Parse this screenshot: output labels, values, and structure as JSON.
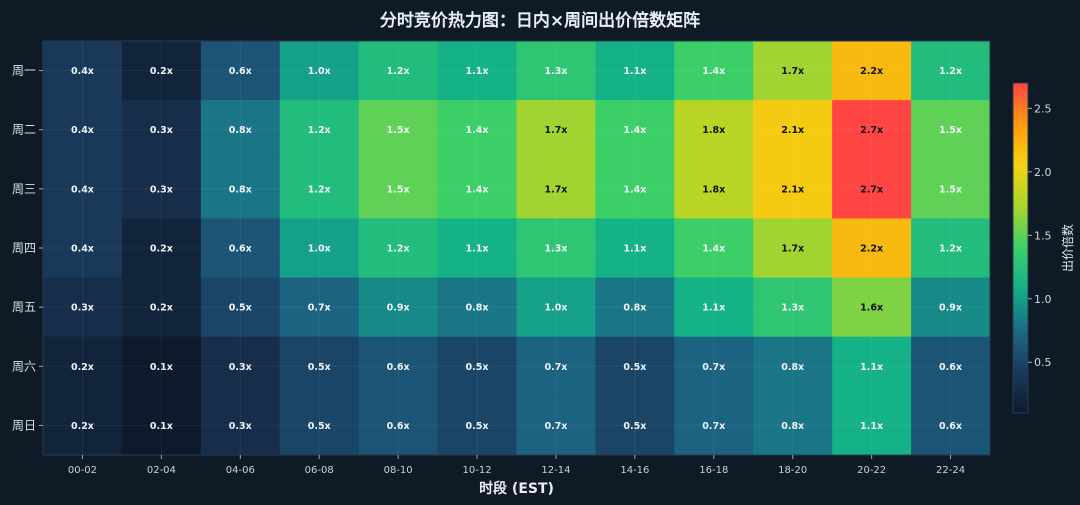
{
  "chart_data": {
    "type": "heatmap",
    "title": "分时竞价热力图：日内×周间出价倍数矩阵",
    "xlabel": "时段 (EST)",
    "ylabel": "",
    "x_categories": [
      "00-02",
      "02-04",
      "04-06",
      "06-08",
      "08-10",
      "10-12",
      "12-14",
      "14-16",
      "16-18",
      "18-20",
      "20-22",
      "22-24"
    ],
    "y_categories": [
      "周一",
      "周二",
      "周三",
      "周四",
      "周五",
      "周六",
      "周日"
    ],
    "values": [
      [
        0.4,
        0.2,
        0.6,
        1.0,
        1.2,
        1.1,
        1.3,
        1.1,
        1.4,
        1.7,
        2.2,
        1.2
      ],
      [
        0.4,
        0.3,
        0.8,
        1.2,
        1.5,
        1.4,
        1.7,
        1.4,
        1.8,
        2.1,
        2.7,
        1.5
      ],
      [
        0.4,
        0.3,
        0.8,
        1.2,
        1.5,
        1.4,
        1.7,
        1.4,
        1.8,
        2.1,
        2.7,
        1.5
      ],
      [
        0.4,
        0.2,
        0.6,
        1.0,
        1.2,
        1.1,
        1.3,
        1.1,
        1.4,
        1.7,
        2.2,
        1.2
      ],
      [
        0.3,
        0.2,
        0.5,
        0.7,
        0.9,
        0.8,
        1.0,
        0.8,
        1.1,
        1.3,
        1.6,
        0.9
      ],
      [
        0.2,
        0.1,
        0.3,
        0.5,
        0.6,
        0.5,
        0.7,
        0.5,
        0.7,
        0.8,
        1.1,
        0.6
      ],
      [
        0.2,
        0.1,
        0.3,
        0.5,
        0.6,
        0.5,
        0.7,
        0.5,
        0.7,
        0.8,
        1.1,
        0.6
      ]
    ],
    "value_suffix": "x",
    "colorbar": {
      "label": "出价倍数",
      "range": [
        0.1,
        2.7
      ],
      "ticks": [
        0.5,
        1.0,
        1.5,
        2.0,
        2.5
      ],
      "tick_labels": [
        "0.5",
        "1.0",
        "1.5",
        "2.0",
        "2.5"
      ],
      "colors": [
        "#0e1a2b",
        "#1b3a5e",
        "#1b6a86",
        "#12b08a",
        "#3ccf68",
        "#a9d42c",
        "#f2d413",
        "#ff9a0e",
        "#ff4444"
      ]
    }
  }
}
